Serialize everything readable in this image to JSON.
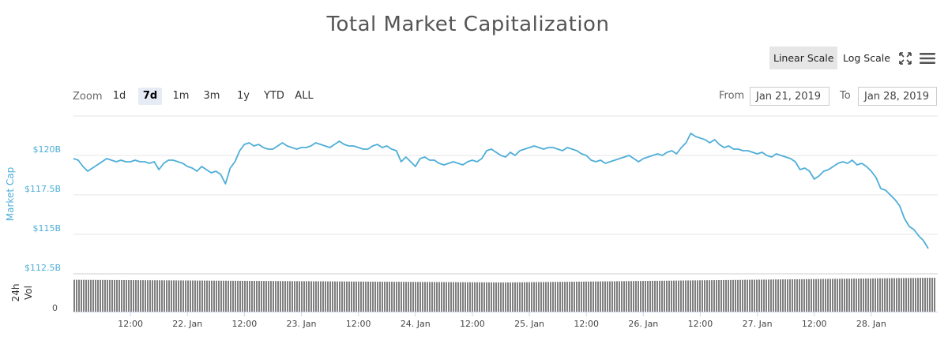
{
  "title": "Total Market Capitalization",
  "toolbar": {
    "linear_label": "Linear Scale",
    "log_label": "Log Scale",
    "fullscreen_icon": "fullscreen-icon",
    "menu_icon": "hamburger-menu-icon"
  },
  "zoom": {
    "label": "Zoom",
    "buttons": [
      "1d",
      "7d",
      "1m",
      "3m",
      "1y",
      "YTD",
      "ALL"
    ],
    "selected": "7d"
  },
  "range": {
    "from_label": "From",
    "from_value": "Jan 21, 2019",
    "to_label": "To",
    "to_value": "Jan 28, 2019"
  },
  "colors": {
    "line": "#4eaed8",
    "axis_label": "#4eaed8",
    "volume": "#7f7f7f",
    "grid": "#e6e6e6"
  },
  "chart_data": {
    "type": "line",
    "title": "Total Market Capitalization",
    "ylabel": "Market Cap",
    "y_ticks": [
      "$112.5B",
      "$115B",
      "$117.5B",
      "$120B"
    ],
    "ylim": [
      112.5,
      121.5
    ],
    "x_ticks": [
      "12:00",
      "22. Jan",
      "12:00",
      "23. Jan",
      "12:00",
      "24. Jan",
      "12:00",
      "25. Jan",
      "12:00",
      "26. Jan",
      "12:00",
      "27. Jan",
      "12:00",
      "28. Jan"
    ],
    "x_tick_hours": [
      12,
      24,
      36,
      48,
      60,
      72,
      84,
      96,
      108,
      120,
      132,
      144,
      156,
      168
    ],
    "xlim_hours": [
      0,
      182
    ],
    "x_origin": "Jan 21, 2019 00:00",
    "series": [
      {
        "points": [
          [
            0,
            119.8
          ],
          [
            1,
            119.7
          ],
          [
            2,
            119.3
          ],
          [
            3,
            119.0
          ],
          [
            4,
            119.2
          ],
          [
            5,
            119.4
          ],
          [
            6,
            119.6
          ],
          [
            7,
            119.8
          ],
          [
            8,
            119.7
          ],
          [
            9,
            119.6
          ],
          [
            10,
            119.7
          ],
          [
            11,
            119.6
          ],
          [
            12,
            119.6
          ],
          [
            13,
            119.7
          ],
          [
            14,
            119.6
          ],
          [
            15,
            119.6
          ],
          [
            16,
            119.5
          ],
          [
            17,
            119.6
          ],
          [
            18,
            119.1
          ],
          [
            19,
            119.5
          ],
          [
            20,
            119.7
          ],
          [
            21,
            119.7
          ],
          [
            22,
            119.6
          ],
          [
            23,
            119.5
          ],
          [
            24,
            119.3
          ],
          [
            25,
            119.2
          ],
          [
            26,
            119.0
          ],
          [
            27,
            119.3
          ],
          [
            28,
            119.1
          ],
          [
            29,
            118.9
          ],
          [
            30,
            119.0
          ],
          [
            31,
            118.8
          ],
          [
            32,
            118.2
          ],
          [
            33,
            119.2
          ],
          [
            34,
            119.6
          ],
          [
            35,
            120.3
          ],
          [
            36,
            120.7
          ],
          [
            37,
            120.8
          ],
          [
            38,
            120.6
          ],
          [
            39,
            120.7
          ],
          [
            40,
            120.5
          ],
          [
            41,
            120.4
          ],
          [
            42,
            120.4
          ],
          [
            43,
            120.6
          ],
          [
            44,
            120.8
          ],
          [
            45,
            120.6
          ],
          [
            46,
            120.5
          ],
          [
            47,
            120.4
          ],
          [
            48,
            120.5
          ],
          [
            49,
            120.5
          ],
          [
            50,
            120.6
          ],
          [
            51,
            120.8
          ],
          [
            52,
            120.7
          ],
          [
            53,
            120.6
          ],
          [
            54,
            120.5
          ],
          [
            55,
            120.7
          ],
          [
            56,
            120.9
          ],
          [
            57,
            120.7
          ],
          [
            58,
            120.6
          ],
          [
            59,
            120.6
          ],
          [
            60,
            120.5
          ],
          [
            61,
            120.4
          ],
          [
            62,
            120.4
          ],
          [
            63,
            120.6
          ],
          [
            64,
            120.7
          ],
          [
            65,
            120.5
          ],
          [
            66,
            120.6
          ],
          [
            67,
            120.4
          ],
          [
            68,
            120.3
          ],
          [
            69,
            119.6
          ],
          [
            70,
            119.9
          ],
          [
            71,
            119.6
          ],
          [
            72,
            119.3
          ],
          [
            73,
            119.8
          ],
          [
            74,
            119.9
          ],
          [
            75,
            119.7
          ],
          [
            76,
            119.7
          ],
          [
            77,
            119.5
          ],
          [
            78,
            119.4
          ],
          [
            79,
            119.5
          ],
          [
            80,
            119.6
          ],
          [
            81,
            119.5
          ],
          [
            82,
            119.4
          ],
          [
            83,
            119.6
          ],
          [
            84,
            119.7
          ],
          [
            85,
            119.6
          ],
          [
            86,
            119.8
          ],
          [
            87,
            120.3
          ],
          [
            88,
            120.4
          ],
          [
            89,
            120.2
          ],
          [
            90,
            120.0
          ],
          [
            91,
            119.9
          ],
          [
            92,
            120.2
          ],
          [
            93,
            120.0
          ],
          [
            94,
            120.3
          ],
          [
            95,
            120.4
          ],
          [
            96,
            120.5
          ],
          [
            97,
            120.6
          ],
          [
            98,
            120.5
          ],
          [
            99,
            120.4
          ],
          [
            100,
            120.5
          ],
          [
            101,
            120.5
          ],
          [
            102,
            120.4
          ],
          [
            103,
            120.3
          ],
          [
            104,
            120.5
          ],
          [
            105,
            120.4
          ],
          [
            106,
            120.3
          ],
          [
            107,
            120.1
          ],
          [
            108,
            120.0
          ],
          [
            109,
            119.7
          ],
          [
            110,
            119.6
          ],
          [
            111,
            119.7
          ],
          [
            112,
            119.5
          ],
          [
            113,
            119.6
          ],
          [
            114,
            119.7
          ],
          [
            115,
            119.8
          ],
          [
            116,
            119.9
          ],
          [
            117,
            120.0
          ],
          [
            118,
            119.8
          ],
          [
            119,
            119.6
          ],
          [
            120,
            119.8
          ],
          [
            121,
            119.9
          ],
          [
            122,
            120.0
          ],
          [
            123,
            120.1
          ],
          [
            124,
            120.0
          ],
          [
            125,
            120.2
          ],
          [
            126,
            120.3
          ],
          [
            127,
            120.1
          ],
          [
            128,
            120.5
          ],
          [
            129,
            120.8
          ],
          [
            130,
            121.4
          ],
          [
            131,
            121.2
          ],
          [
            132,
            121.1
          ],
          [
            133,
            121.0
          ],
          [
            134,
            120.8
          ],
          [
            135,
            121.0
          ],
          [
            136,
            120.7
          ],
          [
            137,
            120.5
          ],
          [
            138,
            120.6
          ],
          [
            139,
            120.4
          ],
          [
            140,
            120.4
          ],
          [
            141,
            120.3
          ],
          [
            142,
            120.3
          ],
          [
            143,
            120.2
          ],
          [
            144,
            120.1
          ],
          [
            145,
            120.2
          ],
          [
            146,
            120.0
          ],
          [
            147,
            119.9
          ],
          [
            148,
            120.1
          ],
          [
            149,
            120.0
          ],
          [
            150,
            119.9
          ],
          [
            151,
            119.8
          ],
          [
            152,
            119.6
          ],
          [
            153,
            119.1
          ],
          [
            154,
            119.2
          ],
          [
            155,
            119.0
          ],
          [
            156,
            118.5
          ],
          [
            157,
            118.7
          ],
          [
            158,
            119.0
          ],
          [
            159,
            119.1
          ],
          [
            160,
            119.3
          ],
          [
            161,
            119.5
          ],
          [
            162,
            119.6
          ],
          [
            163,
            119.5
          ],
          [
            164,
            119.7
          ],
          [
            165,
            119.4
          ],
          [
            166,
            119.5
          ],
          [
            167,
            119.3
          ],
          [
            168,
            119.0
          ],
          [
            169,
            118.6
          ],
          [
            170,
            117.9
          ],
          [
            171,
            117.8
          ],
          [
            172,
            117.5
          ],
          [
            173,
            117.2
          ],
          [
            174,
            116.8
          ],
          [
            175,
            116.0
          ],
          [
            176,
            115.5
          ],
          [
            177,
            115.3
          ],
          [
            178,
            114.9
          ],
          [
            179,
            114.6
          ],
          [
            180,
            114.1
          ]
        ]
      }
    ],
    "volume": {
      "label": "24h Vol",
      "y_ticks": [
        "0"
      ],
      "level_fraction_start": 0.94,
      "level_fraction_min": 0.86,
      "level_fraction_end": 1.0
    },
    "grid": true,
    "legend": "none"
  }
}
